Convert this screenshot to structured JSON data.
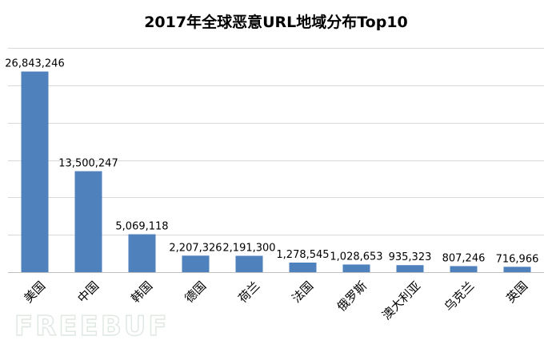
{
  "chart_data": {
    "type": "bar",
    "title": "2017年全球恶意URL地域分布Top10",
    "categories": [
      "美国",
      "中国",
      "韩国",
      "德国",
      "荷兰",
      "法国",
      "俄罗斯",
      "澳大利亚",
      "乌克兰",
      "英国"
    ],
    "values": [
      26843246,
      13500247,
      5069118,
      2207326,
      2191300,
      1278545,
      1028653,
      935323,
      807246,
      716966
    ],
    "data_labels": [
      "26,843,246",
      "13,500,247",
      "5,069,118",
      "2,207,326",
      "2,191,300",
      "1,278,545",
      "1,028,653",
      "935,323",
      "807,246",
      "716,966"
    ],
    "xlabel": "",
    "ylabel": "",
    "ylim": [
      0,
      30000000
    ],
    "y_gridlines": [
      0,
      5000000,
      10000000,
      15000000,
      20000000,
      25000000,
      30000000
    ],
    "y_tick_labels_shown": false,
    "grid": true,
    "legend": "none",
    "colors": {
      "bar": "#4f81bd",
      "grid": "#d9d9d9",
      "axis": "#bfbfbf",
      "text": "#000000"
    }
  },
  "watermark": {
    "text": "FREEBUF"
  }
}
